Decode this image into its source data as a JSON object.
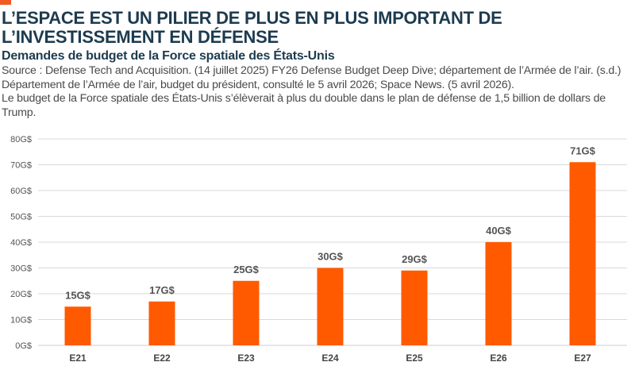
{
  "header": {
    "title": "L’ESPACE EST UN PILIER DE PLUS EN PLUS IMPORTANT DE L’INVESTISSEMENT EN DÉFENSE",
    "subtitle": "Demandes de budget de la Force spatiale des États-Unis",
    "source": "Source : Defense Tech and Acquisition. (14 juillet 2025) FY26 Defense Budget Deep Dive; département de l’Armée de l’air. (s.d.) Département de l’Armée de l’air, budget du président, consulté le 5 avril 2026; Space News. (5 avril 2026).",
    "note": "Le budget de la Force spatiale des États-Unis s’élèverait à plus du double dans le plan de défense de 1,5 billion de dollars de Trump."
  },
  "colors": {
    "accent": "#f15a22",
    "bar": "#ff5a00",
    "title": "#1d3b4f",
    "grid": "#d9d9d9"
  },
  "chart_data": {
    "type": "bar",
    "categories": [
      "E21",
      "E22",
      "E23",
      "E24",
      "E25",
      "E26",
      "E27"
    ],
    "values": [
      15,
      17,
      25,
      30,
      29,
      40,
      71
    ],
    "data_labels": [
      "15G$",
      "17G$",
      "25G$",
      "30G$",
      "29G$",
      "40G$",
      "71G$"
    ],
    "y_ticks": [
      0,
      10,
      20,
      30,
      40,
      50,
      60,
      70,
      80
    ],
    "y_tick_labels": [
      "0G$",
      "10G$",
      "20G$",
      "30G$",
      "40G$",
      "50G$",
      "60G$",
      "70G$",
      "80G$"
    ],
    "ylim": [
      0,
      80
    ],
    "grid": true,
    "legend": "none"
  }
}
